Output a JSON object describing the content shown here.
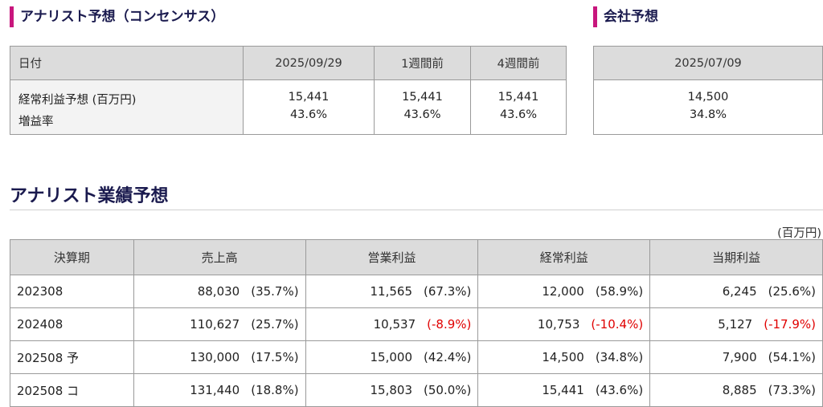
{
  "consensus": {
    "title": "アナリスト予想（コンセンサス）",
    "headers": [
      "日付",
      "2025/09/29",
      "1週間前",
      "4週間前"
    ],
    "row_label_1": "経常利益予想 (百万円)",
    "row_label_2": "増益率",
    "cols": [
      {
        "value": "15,441",
        "rate": "43.6%"
      },
      {
        "value": "15,441",
        "rate": "43.6%"
      },
      {
        "value": "15,441",
        "rate": "43.6%"
      }
    ]
  },
  "company": {
    "title": "会社予想",
    "date": "2025/07/09",
    "value": "14,500",
    "rate": "34.8%"
  },
  "performance": {
    "title": "アナリスト業績予想",
    "unit": "(百万円)",
    "headers": [
      "決算期",
      "売上高",
      "営業利益",
      "経常利益",
      "当期利益"
    ],
    "rows": [
      {
        "period": "202308",
        "sales": {
          "v": "88,030",
          "p": "(35.7%)",
          "neg": false
        },
        "op": {
          "v": "11,565",
          "p": "(67.3%)",
          "neg": false
        },
        "ord": {
          "v": "12,000",
          "p": "(58.9%)",
          "neg": false
        },
        "net": {
          "v": "6,245",
          "p": "(25.6%)",
          "neg": false
        }
      },
      {
        "period": "202408",
        "sales": {
          "v": "110,627",
          "p": "(25.7%)",
          "neg": false
        },
        "op": {
          "v": "10,537",
          "p": "(-8.9%)",
          "neg": true
        },
        "ord": {
          "v": "10,753",
          "p": "(-10.4%)",
          "neg": true
        },
        "net": {
          "v": "5,127",
          "p": "(-17.9%)",
          "neg": true
        }
      },
      {
        "period": "202508 予",
        "sales": {
          "v": "130,000",
          "p": "(17.5%)",
          "neg": false
        },
        "op": {
          "v": "15,000",
          "p": "(42.4%)",
          "neg": false
        },
        "ord": {
          "v": "14,500",
          "p": "(34.8%)",
          "neg": false
        },
        "net": {
          "v": "7,900",
          "p": "(54.1%)",
          "neg": false
        }
      },
      {
        "period": "202508 コ",
        "sales": {
          "v": "131,440",
          "p": "(18.8%)",
          "neg": false
        },
        "op": {
          "v": "15,803",
          "p": "(50.0%)",
          "neg": false
        },
        "ord": {
          "v": "15,441",
          "p": "(43.6%)",
          "neg": false
        },
        "net": {
          "v": "8,885",
          "p": "(73.3%)",
          "neg": false
        }
      }
    ]
  },
  "colors": {
    "accent_bar": "#c8167d",
    "negative": "#e00000",
    "title": "#1a1a4e"
  }
}
